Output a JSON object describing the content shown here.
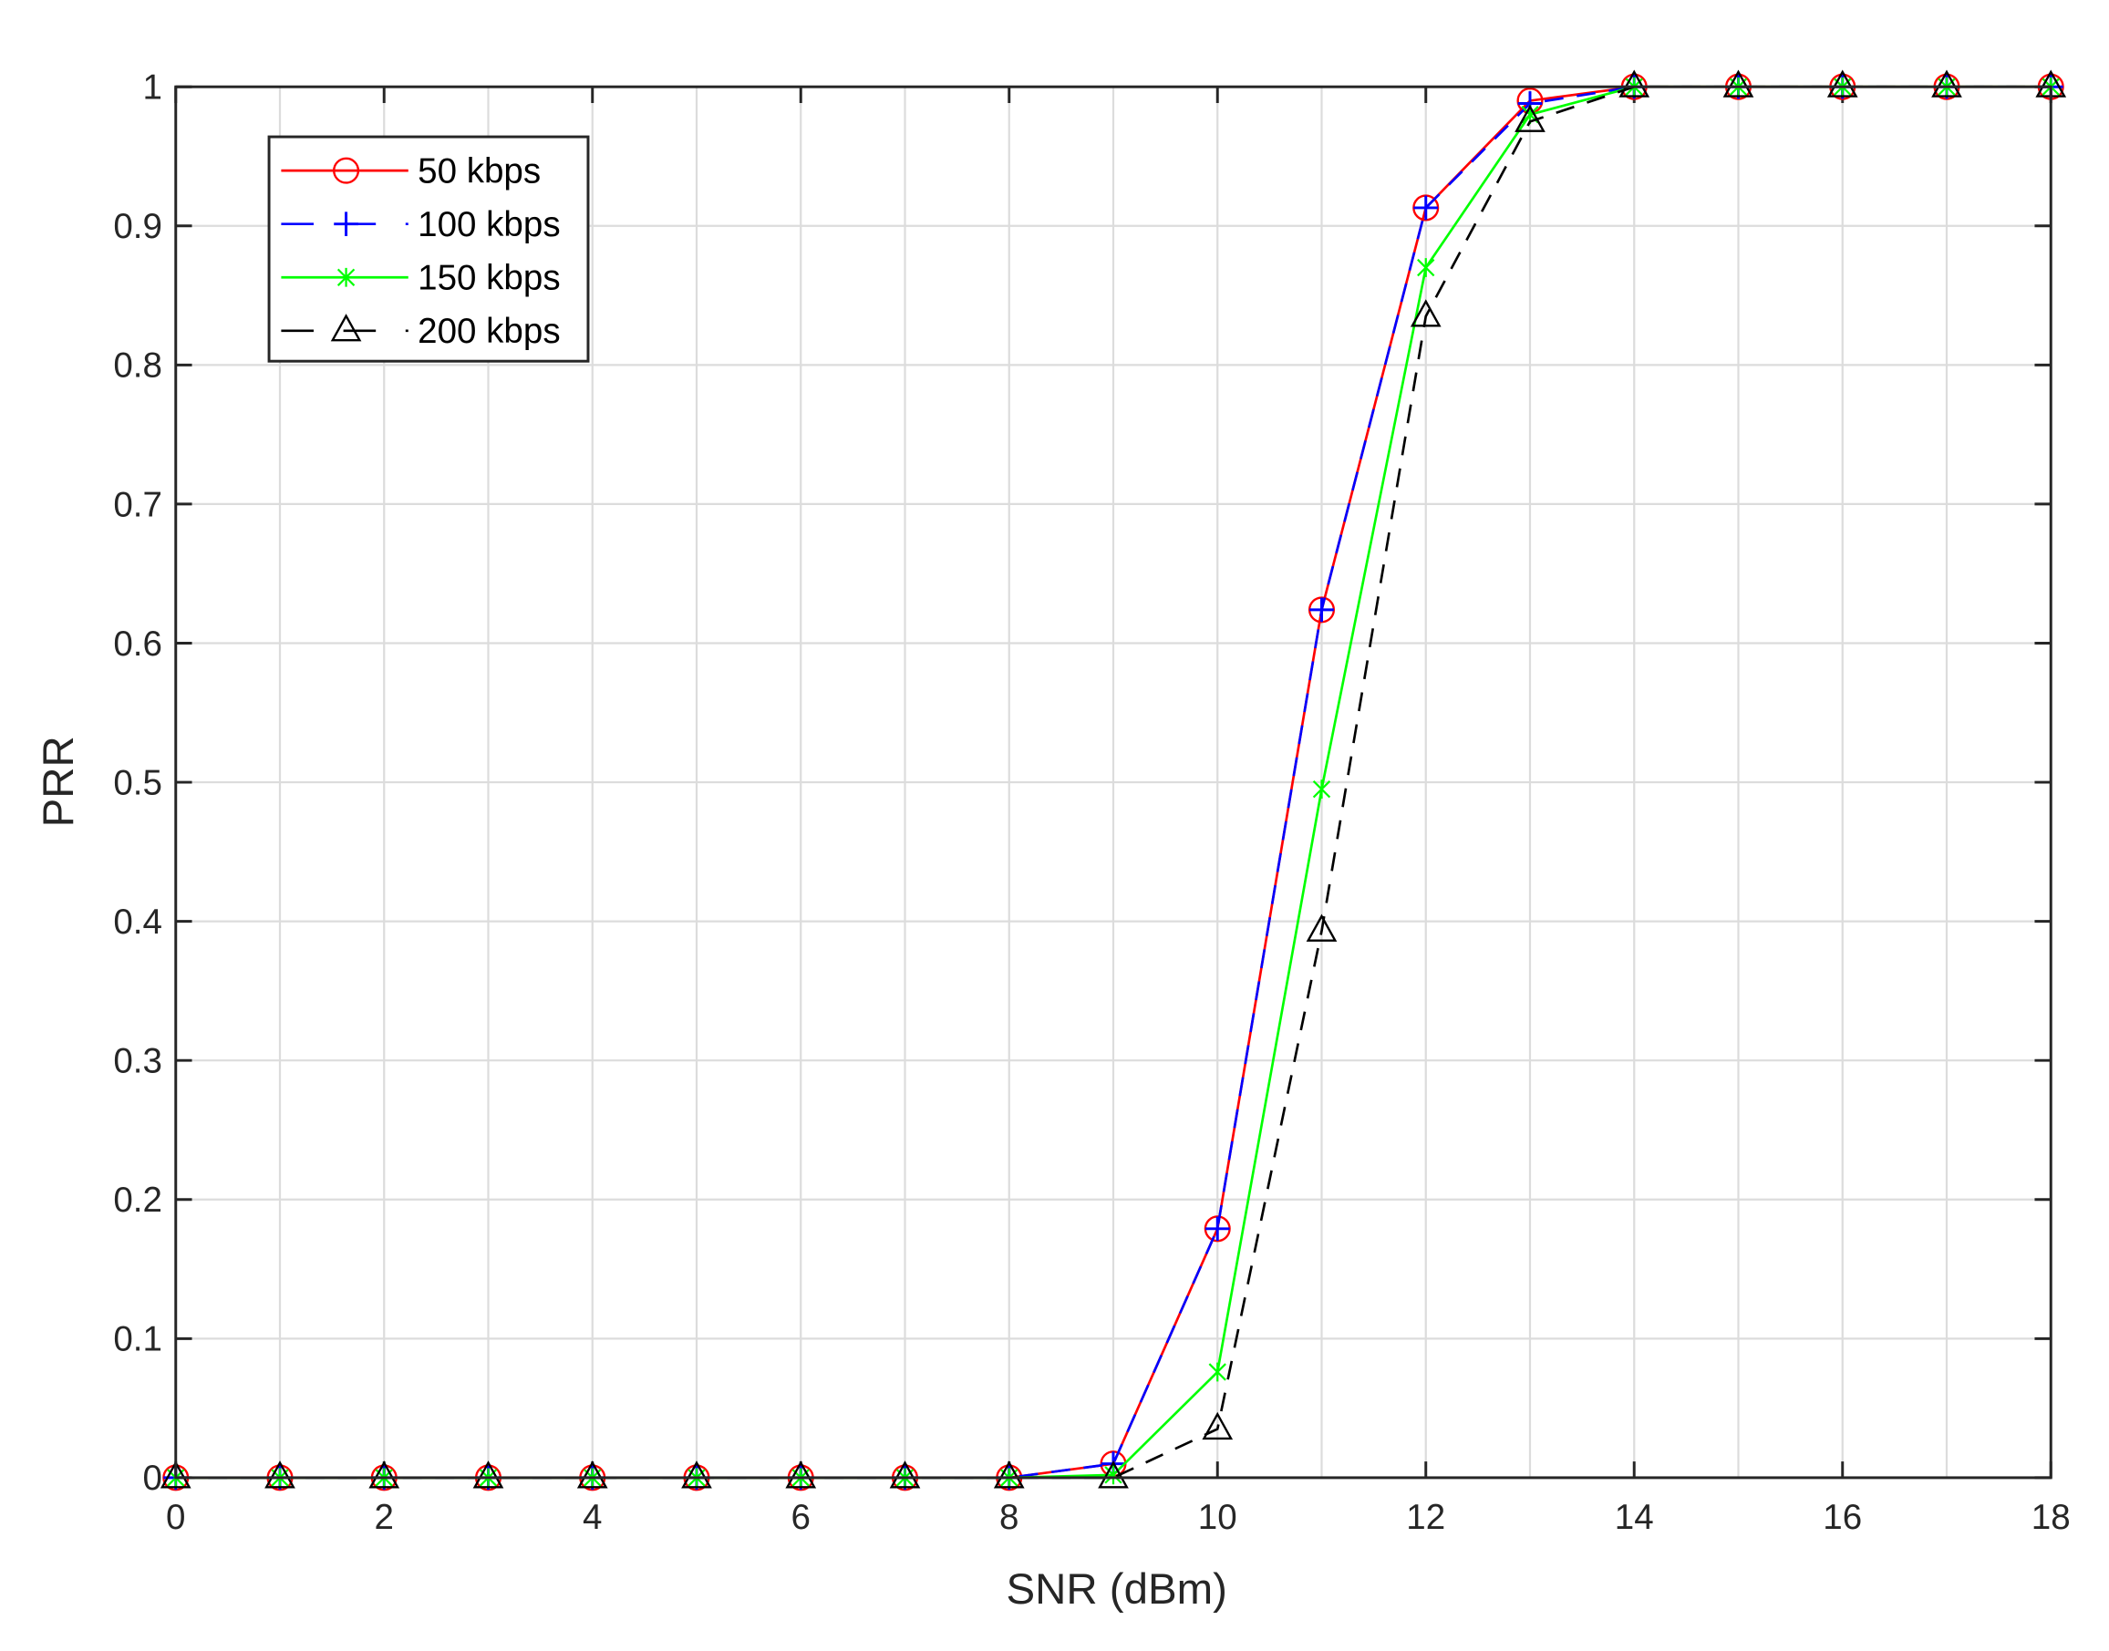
{
  "chart_data": {
    "type": "line",
    "title": "",
    "xlabel": "SNR (dBm)",
    "ylabel": "PRR",
    "xlim": [
      0,
      18
    ],
    "ylim": [
      0,
      1
    ],
    "grid": true,
    "legend_position": "top-left",
    "x_ticks": [
      "0",
      "2",
      "4",
      "6",
      "8",
      "10",
      "12",
      "14",
      "16",
      "18"
    ],
    "y_ticks": [
      "0",
      "0.1",
      "0.2",
      "0.3",
      "0.4",
      "0.5",
      "0.6",
      "0.7",
      "0.8",
      "0.9",
      "1"
    ],
    "x": [
      0,
      1,
      2,
      3,
      4,
      5,
      6,
      7,
      8,
      9,
      10,
      11,
      12,
      13,
      14,
      15,
      16,
      17,
      18
    ],
    "series": [
      {
        "name": "50 kbps",
        "color": "#ff0000",
        "dash": "solid",
        "marker": "circle",
        "values": [
          0,
          0,
          0,
          0,
          0,
          0,
          0,
          0,
          0,
          0.01,
          0.179,
          0.624,
          0.913,
          0.99,
          1,
          1,
          1,
          1,
          1
        ]
      },
      {
        "name": "100 kbps",
        "color": "#0000ff",
        "dash": "dashed",
        "marker": "plus",
        "values": [
          0,
          0,
          0,
          0,
          0,
          0,
          0,
          0,
          0,
          0.01,
          0.179,
          0.624,
          0.913,
          0.988,
          1,
          1,
          1,
          1,
          1
        ]
      },
      {
        "name": "150 kbps",
        "color": "#00ff00",
        "dash": "solid",
        "marker": "x",
        "values": [
          0,
          0,
          0,
          0,
          0,
          0,
          0,
          0,
          0,
          0.002,
          0.076,
          0.495,
          0.87,
          0.98,
          1,
          1,
          1,
          1,
          1
        ]
      },
      {
        "name": "200 kbps",
        "color": "#000000",
        "dash": "dashed",
        "marker": "triangle",
        "values": [
          0,
          0,
          0,
          0,
          0,
          0,
          0,
          0,
          0,
          0,
          0.035,
          0.393,
          0.835,
          0.975,
          1,
          1,
          1,
          1,
          1
        ]
      }
    ]
  }
}
